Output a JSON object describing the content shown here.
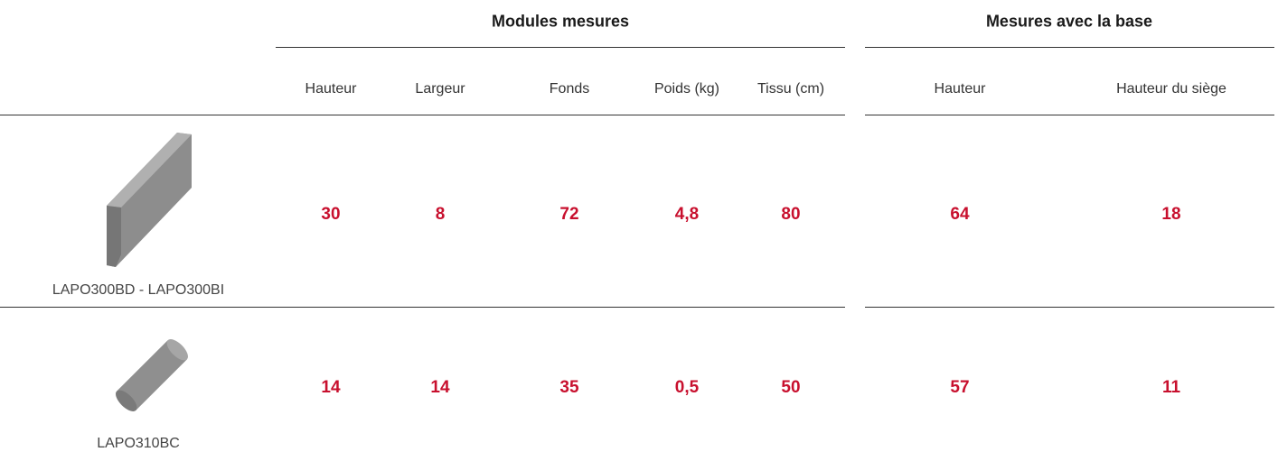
{
  "header": {
    "groups": [
      "Modules mesures",
      "Mesures avec la base"
    ],
    "columns": [
      "Hauteur",
      "Largeur",
      "Fonds",
      "Poids (kg)",
      "Tissu (cm)",
      "Hauteur",
      "Hauteur du siège"
    ]
  },
  "rows": [
    {
      "label": "LAPO300BD - LAPO300BI",
      "values": [
        "30",
        "8",
        "72",
        "4,8",
        "80",
        "64",
        "18"
      ]
    },
    {
      "label": "LAPO310BC",
      "values": [
        "14",
        "14",
        "35",
        "0,5",
        "50",
        "57",
        "11"
      ]
    }
  ]
}
